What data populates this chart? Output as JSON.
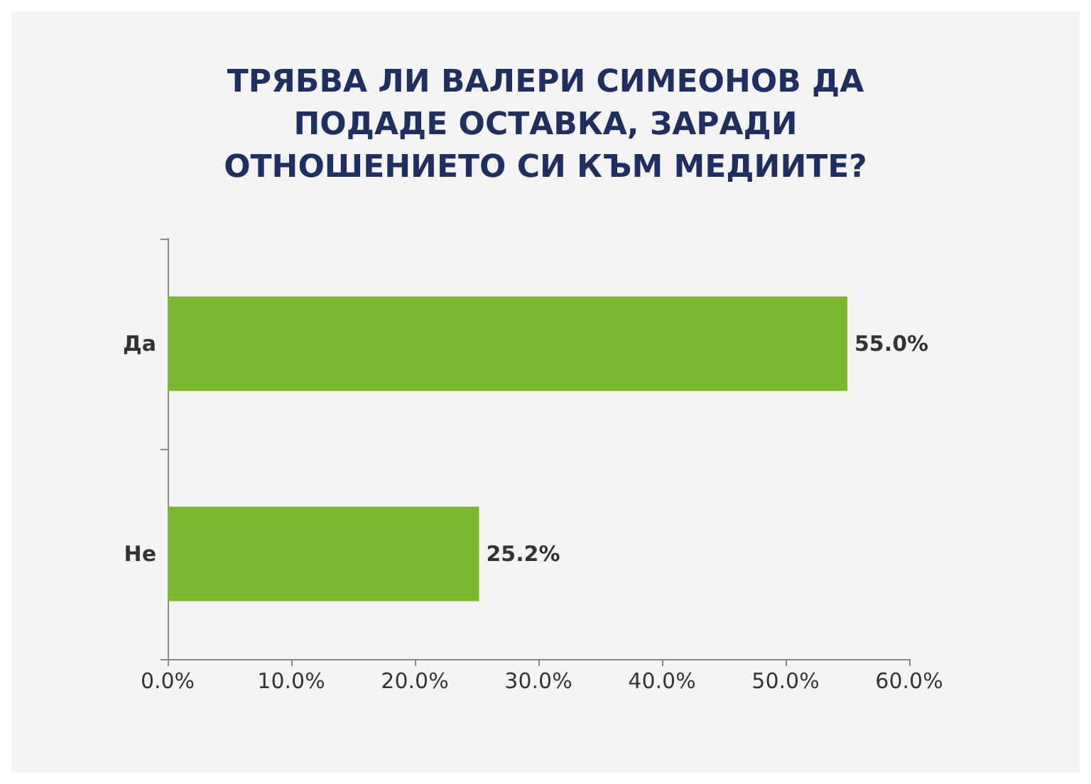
{
  "chart_data": {
    "type": "bar",
    "orientation": "horizontal",
    "title": "ТРЯБВА ЛИ ВАЛЕРИ СИМЕОНОВ ДА ПОДАДЕ ОСТАВКА, ЗАРАДИ ОТНОШЕНИЕТО СИ КЪМ МЕДИИТЕ?",
    "categories": [
      "Да",
      "Не"
    ],
    "values": [
      55.0,
      25.2
    ],
    "color": "#7cb82f",
    "value_labels": [
      "55.0%",
      "25.2%"
    ],
    "xlim": [
      0,
      60
    ],
    "xticks": [
      {
        "value": 0,
        "label": "0.0%"
      },
      {
        "value": 10,
        "label": "10.0%"
      },
      {
        "value": 20,
        "label": "20.0%"
      },
      {
        "value": 30,
        "label": "30.0%"
      },
      {
        "value": 40,
        "label": "40.0%"
      },
      {
        "value": 50,
        "label": "50.0%"
      },
      {
        "value": 60,
        "label": "60.0%"
      }
    ],
    "grid": false
  }
}
